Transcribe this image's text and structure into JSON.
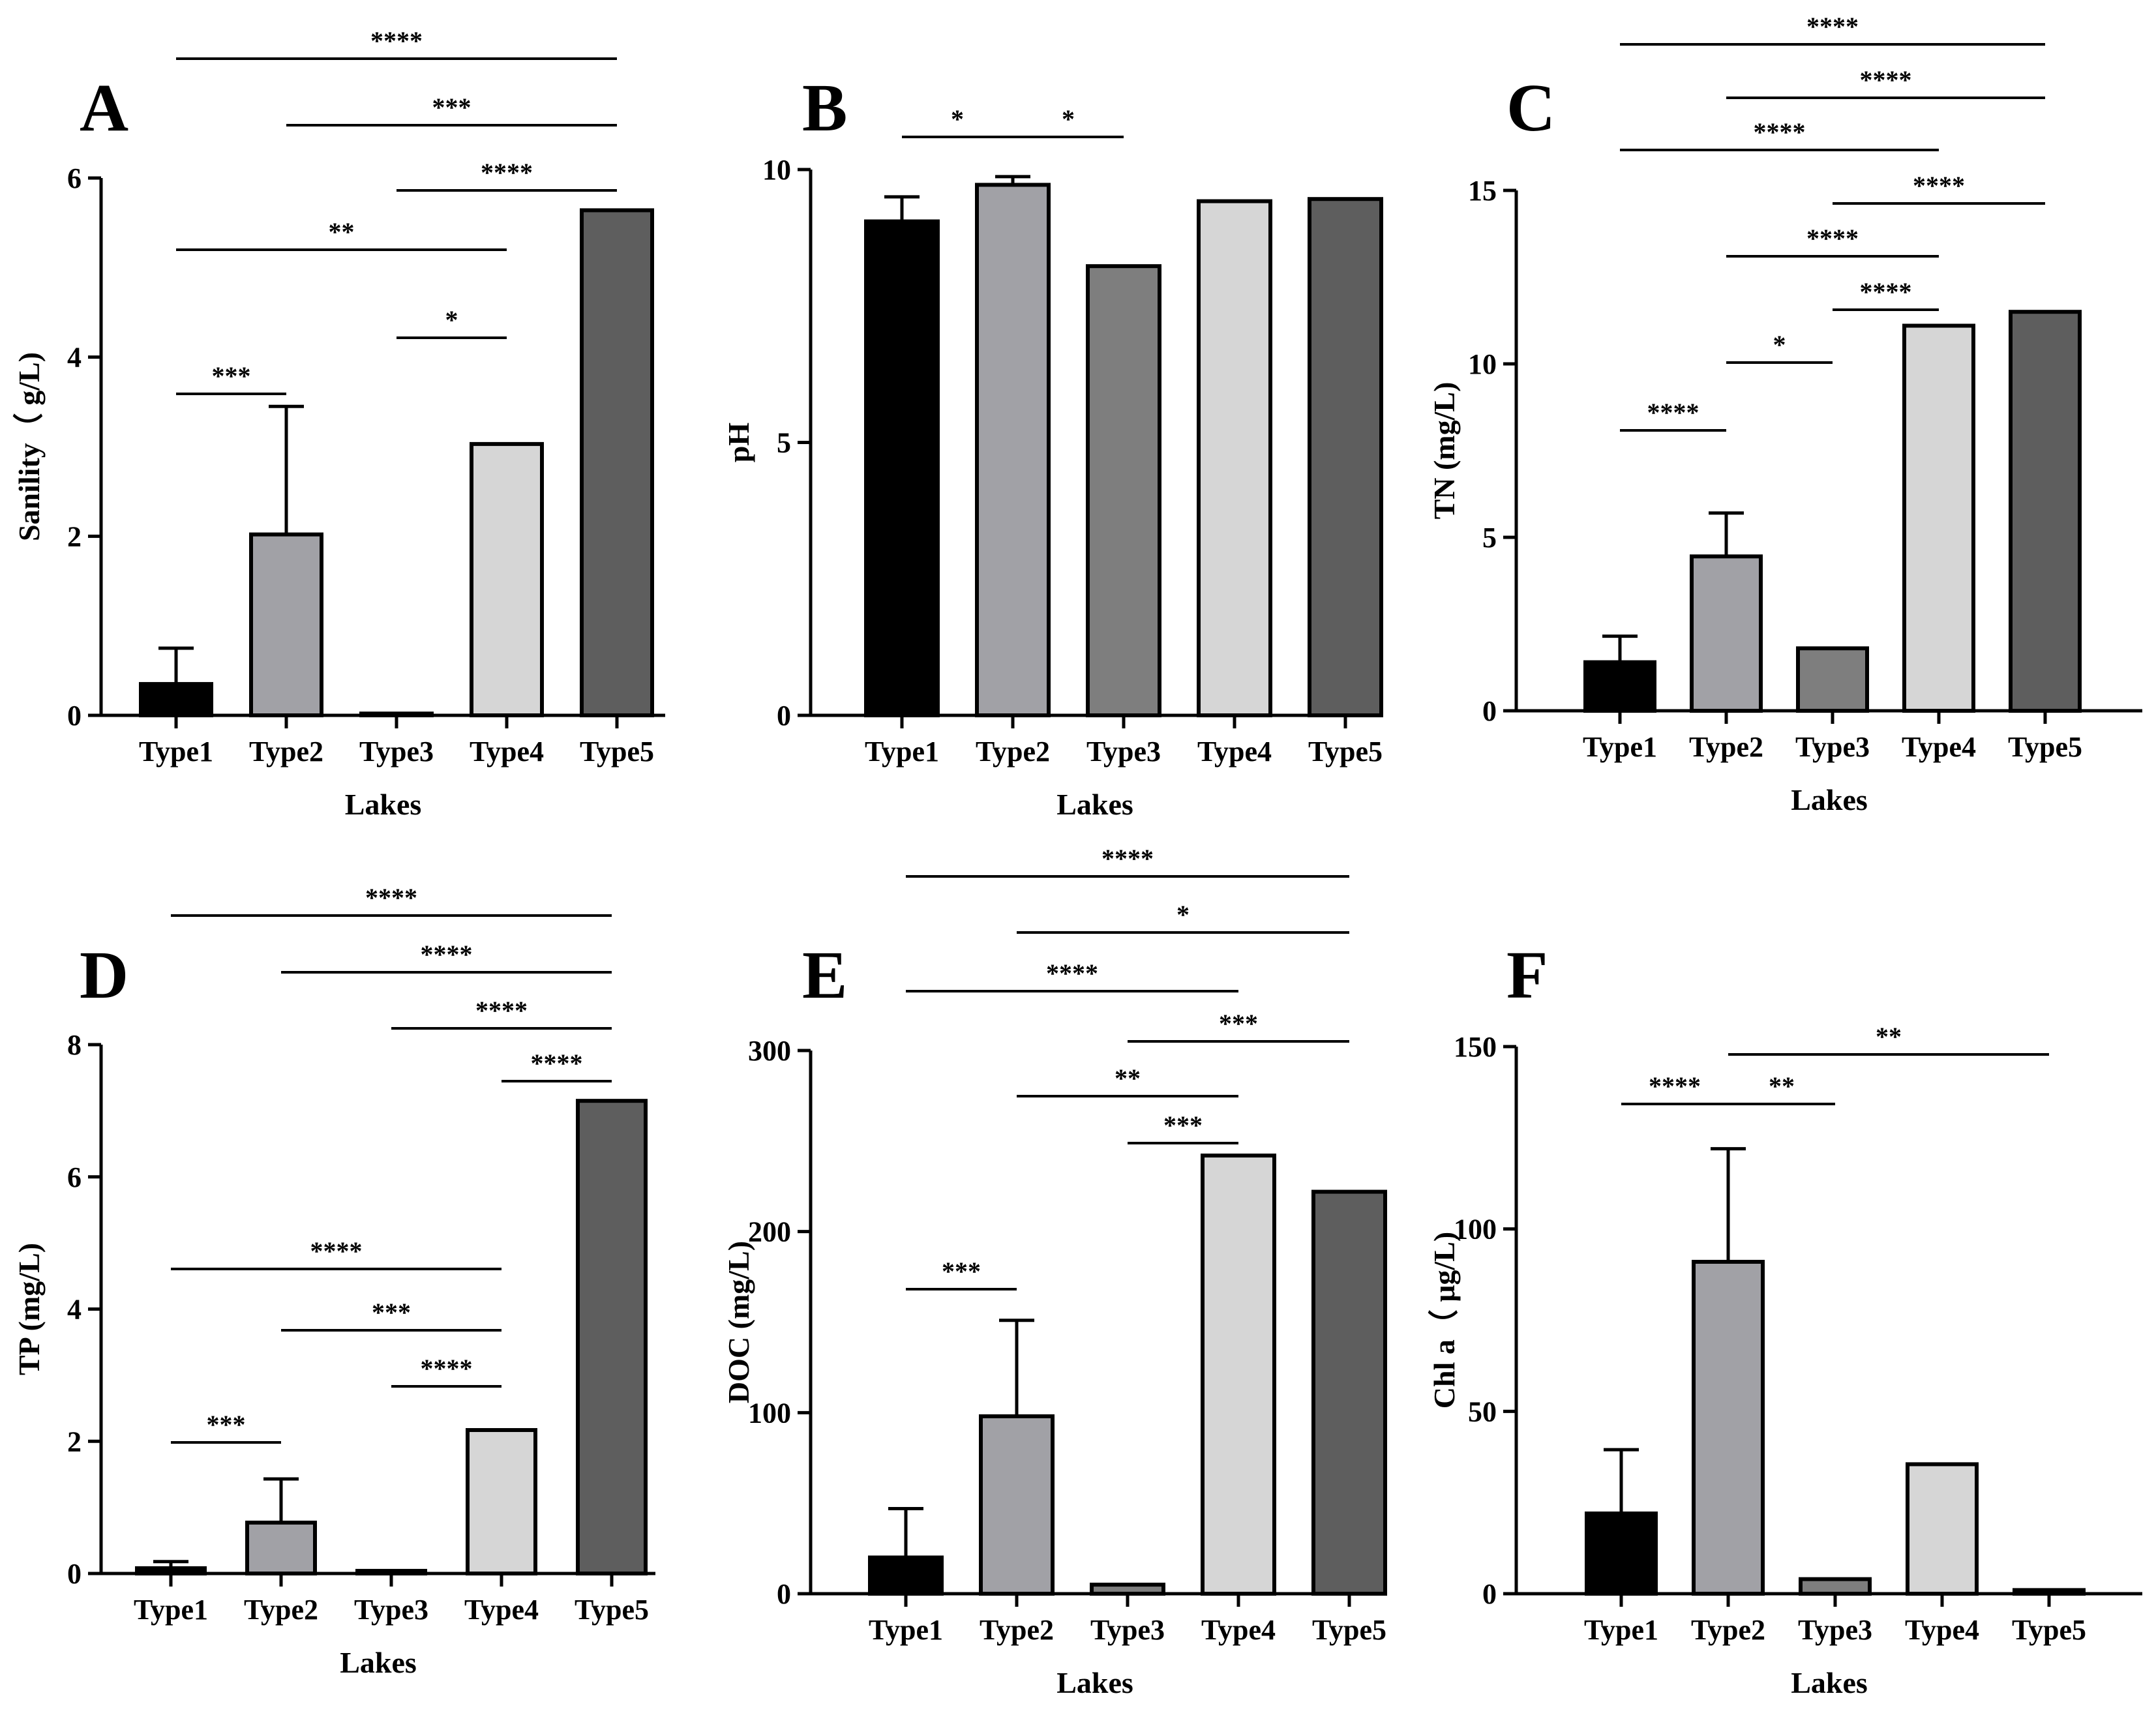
{
  "chart_data": [
    {
      "type": "bar",
      "panel": "A",
      "categories": [
        "Type1",
        "Type2",
        "Type3",
        "Type4",
        "Type5"
      ],
      "values": [
        0.35,
        2.02,
        0.02,
        3.03,
        5.64
      ],
      "errors": [
        0.4,
        1.43,
        0,
        0,
        0
      ],
      "xlabel": "Lakes",
      "ylabel": "Sanility（ g/L)",
      "ylim": [
        0,
        6
      ],
      "yticks": [
        0,
        2,
        4,
        6
      ],
      "colors": [
        "#000000",
        "#a1a1a6",
        "#7e7e7e",
        "#d6d6d6",
        "#5e5e5e"
      ],
      "significance": [
        {
          "from": 0,
          "to": 4,
          "label": "****"
        },
        {
          "from": 1,
          "to": 4,
          "label": "***"
        },
        {
          "from": 2,
          "to": 4,
          "label": "****"
        },
        {
          "from": 0,
          "to": 3,
          "label": "**"
        },
        {
          "from": 2,
          "to": 3,
          "label": "*"
        },
        {
          "from": 0,
          "to": 1,
          "label": "***"
        }
      ]
    },
    {
      "type": "bar",
      "panel": "B",
      "categories": [
        "Type1",
        "Type2",
        "Type3",
        "Type4",
        "Type5"
      ],
      "values": [
        9.05,
        9.72,
        8.23,
        9.42,
        9.46
      ],
      "errors": [
        0.45,
        0.15,
        0,
        0,
        0
      ],
      "xlabel": "Lakes",
      "ylabel": "pH",
      "ylim": [
        0,
        10
      ],
      "yticks": [
        0,
        5,
        10
      ],
      "colors": [
        "#000000",
        "#a1a1a6",
        "#7e7e7e",
        "#d6d6d6",
        "#5e5e5e"
      ],
      "significance": [
        {
          "from": 0,
          "to": 1,
          "label": "*"
        },
        {
          "from": 1,
          "to": 2,
          "label": "*"
        }
      ]
    },
    {
      "type": "bar",
      "panel": "C",
      "categories": [
        "Type1",
        "Type2",
        "Type3",
        "Type4",
        "Type5"
      ],
      "values": [
        1.4,
        4.45,
        1.8,
        11.1,
        11.5
      ],
      "errors": [
        0.75,
        1.25,
        0,
        0,
        0
      ],
      "xlabel": "Lakes",
      "ylabel": "TN (mg/L)",
      "ylim": [
        0,
        15
      ],
      "yticks": [
        0,
        5,
        10,
        15
      ],
      "colors": [
        "#000000",
        "#a1a1a6",
        "#7e7e7e",
        "#d6d6d6",
        "#5e5e5e"
      ],
      "significance": [
        {
          "from": 0,
          "to": 4,
          "label": "****"
        },
        {
          "from": 1,
          "to": 4,
          "label": "****"
        },
        {
          "from": 0,
          "to": 3,
          "label": "****"
        },
        {
          "from": 2,
          "to": 4,
          "label": "****"
        },
        {
          "from": 1,
          "to": 3,
          "label": "****"
        },
        {
          "from": 2,
          "to": 3,
          "label": "****"
        },
        {
          "from": 1,
          "to": 2,
          "label": "*"
        },
        {
          "from": 0,
          "to": 1,
          "label": "****"
        }
      ]
    },
    {
      "type": "bar",
      "panel": "D",
      "categories": [
        "Type1",
        "Type2",
        "Type3",
        "Type4",
        "Type5"
      ],
      "values": [
        0.08,
        0.77,
        0.04,
        2.17,
        7.15
      ],
      "errors": [
        0.1,
        0.66,
        0,
        0,
        0
      ],
      "xlabel": "Lakes",
      "ylabel": "TP (mg/L)",
      "ylim": [
        0,
        8
      ],
      "yticks": [
        0,
        2,
        4,
        6,
        8
      ],
      "colors": [
        "#000000",
        "#a1a1a6",
        "#7e7e7e",
        "#d6d6d6",
        "#5e5e5e"
      ],
      "significance": [
        {
          "from": 0,
          "to": 4,
          "label": "****"
        },
        {
          "from": 1,
          "to": 4,
          "label": "****"
        },
        {
          "from": 2,
          "to": 4,
          "label": "****"
        },
        {
          "from": 3,
          "to": 4,
          "label": "****"
        },
        {
          "from": 0,
          "to": 3,
          "label": "****"
        },
        {
          "from": 1,
          "to": 3,
          "label": "***"
        },
        {
          "from": 2,
          "to": 3,
          "label": "****"
        },
        {
          "from": 0,
          "to": 1,
          "label": "***"
        }
      ]
    },
    {
      "type": "bar",
      "panel": "E",
      "categories": [
        "Type1",
        "Type2",
        "Type3",
        "Type4",
        "Type5"
      ],
      "values": [
        20,
        98,
        5,
        242,
        222
      ],
      "errors": [
        27,
        53,
        0,
        0,
        0
      ],
      "xlabel": "Lakes",
      "ylabel": "DOC (mg/L)",
      "ylim": [
        0,
        300
      ],
      "yticks": [
        0,
        100,
        200,
        300
      ],
      "colors": [
        "#000000",
        "#a1a1a6",
        "#7e7e7e",
        "#d6d6d6",
        "#5e5e5e"
      ],
      "significance": [
        {
          "from": 0,
          "to": 4,
          "label": "****"
        },
        {
          "from": 1,
          "to": 4,
          "label": "*"
        },
        {
          "from": 0,
          "to": 3,
          "label": "****"
        },
        {
          "from": 2,
          "to": 4,
          "label": "***"
        },
        {
          "from": 1,
          "to": 3,
          "label": "**"
        },
        {
          "from": 2,
          "to": 3,
          "label": "***"
        },
        {
          "from": 0,
          "to": 1,
          "label": "***"
        }
      ]
    },
    {
      "type": "bar",
      "panel": "F",
      "categories": [
        "Type1",
        "Type2",
        "Type3",
        "Type4",
        "Type5"
      ],
      "values": [
        22,
        91,
        4,
        35.5,
        1
      ],
      "errors": [
        17.5,
        31,
        0,
        0,
        0
      ],
      "xlabel": "Lakes",
      "ylabel": "Chl a（ μg/L)",
      "ylim": [
        0,
        150
      ],
      "yticks": [
        0,
        50,
        100,
        150
      ],
      "colors": [
        "#000000",
        "#a1a1a6",
        "#7e7e7e",
        "#d6d6d6",
        "#5e5e5e"
      ],
      "significance": [
        {
          "from": 1,
          "to": 4,
          "label": "**"
        },
        {
          "from": 0,
          "to": 1,
          "label": "****"
        },
        {
          "from": 1,
          "to": 2,
          "label": "**"
        }
      ]
    }
  ]
}
